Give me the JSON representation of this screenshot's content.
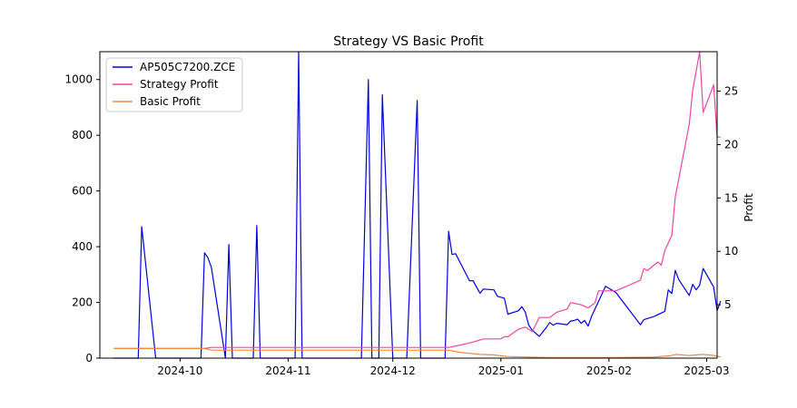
{
  "chart_data": {
    "type": "line",
    "title": "Strategy VS Basic Profit",
    "xlabel": "",
    "ylabel_left": "",
    "ylabel_right": "Profit",
    "x_axis_type": "date",
    "xlim": [
      "2024-09-08",
      "2025-03-04"
    ],
    "ylim_left": [
      0,
      1100
    ],
    "ylim_right": [
      0,
      28.7
    ],
    "x_ticks": [
      "2024-10-01",
      "2024-11-01",
      "2024-12-01",
      "2025-01-01",
      "2025-02-01",
      "2025-03-01"
    ],
    "x_tick_labels": [
      "2024-10",
      "2024-11",
      "2024-12",
      "2025-01",
      "2025-02",
      "2025-03"
    ],
    "y_ticks_left": [
      0,
      200,
      400,
      600,
      800,
      1000
    ],
    "y_tick_labels_left": [
      "0",
      "200",
      "400",
      "600",
      "800",
      "1000"
    ],
    "y_ticks_right": [
      5,
      10,
      15,
      20,
      25
    ],
    "y_tick_labels_right": [
      "5",
      "10",
      "15",
      "20",
      "25"
    ],
    "grid": false,
    "legend_position": "top-left",
    "series": [
      {
        "name": "AP505C7200.ZCE",
        "axis": "left",
        "color": "#0000dd",
        "points": [
          [
            "2024-09-12",
            0
          ],
          [
            "2024-09-19",
            0
          ],
          [
            "2024-09-20",
            472
          ],
          [
            "2024-09-24",
            0
          ],
          [
            "2024-10-07",
            0
          ],
          [
            "2024-10-08",
            378
          ],
          [
            "2024-10-09",
            360
          ],
          [
            "2024-10-10",
            325
          ],
          [
            "2024-10-14",
            0
          ],
          [
            "2024-10-15",
            408
          ],
          [
            "2024-10-16",
            0
          ],
          [
            "2024-10-22",
            0
          ],
          [
            "2024-10-23",
            476
          ],
          [
            "2024-10-24",
            0
          ],
          [
            "2024-11-03",
            0
          ],
          [
            "2024-11-04",
            1100
          ],
          [
            "2024-11-05",
            0
          ],
          [
            "2024-11-22",
            0
          ],
          [
            "2024-11-24",
            1000
          ],
          [
            "2024-11-25",
            0
          ],
          [
            "2024-11-27",
            0
          ],
          [
            "2024-11-28",
            945
          ],
          [
            "2024-12-01",
            0
          ],
          [
            "2024-12-05",
            0
          ],
          [
            "2024-12-08",
            925
          ],
          [
            "2024-12-09",
            0
          ],
          [
            "2024-12-16",
            0
          ],
          [
            "2024-12-17",
            455
          ],
          [
            "2024-12-18",
            372
          ],
          [
            "2024-12-19",
            375
          ],
          [
            "2024-12-23",
            278
          ],
          [
            "2024-12-24",
            278
          ],
          [
            "2024-12-26",
            233
          ],
          [
            "2024-12-27",
            248
          ],
          [
            "2024-12-30",
            245
          ],
          [
            "2024-12-31",
            222
          ],
          [
            "2025-01-02",
            215
          ],
          [
            "2025-01-03",
            158
          ],
          [
            "2025-01-06",
            170
          ],
          [
            "2025-01-07",
            185
          ],
          [
            "2025-01-08",
            165
          ],
          [
            "2025-01-09",
            118
          ],
          [
            "2025-01-10",
            100
          ],
          [
            "2025-01-12",
            78
          ],
          [
            "2025-01-14",
            110
          ],
          [
            "2025-01-15",
            128
          ],
          [
            "2025-01-16",
            118
          ],
          [
            "2025-01-17",
            125
          ],
          [
            "2025-01-20",
            120
          ],
          [
            "2025-01-21",
            133
          ],
          [
            "2025-01-22",
            135
          ],
          [
            "2025-01-23",
            140
          ],
          [
            "2025-01-24",
            125
          ],
          [
            "2025-01-25",
            135
          ],
          [
            "2025-01-26",
            115
          ],
          [
            "2025-01-27",
            150
          ],
          [
            "2025-01-31",
            258
          ],
          [
            "2025-02-03",
            235
          ],
          [
            "2025-02-10",
            120
          ],
          [
            "2025-02-11",
            138
          ],
          [
            "2025-02-14",
            150
          ],
          [
            "2025-02-17",
            168
          ],
          [
            "2025-02-18",
            245
          ],
          [
            "2025-02-19",
            232
          ],
          [
            "2025-02-20",
            315
          ],
          [
            "2025-02-21",
            282
          ],
          [
            "2025-02-24",
            225
          ],
          [
            "2025-02-25",
            265
          ],
          [
            "2025-02-26",
            245
          ],
          [
            "2025-02-27",
            262
          ],
          [
            "2025-02-28",
            322
          ],
          [
            "2025-03-03",
            255
          ],
          [
            "2025-03-04",
            170
          ],
          [
            "2025-03-05",
            205
          ]
        ]
      },
      {
        "name": "Strategy Profit",
        "axis": "right",
        "color": "#ee44aa",
        "points": [
          [
            "2024-09-12",
            0.9
          ],
          [
            "2024-10-08",
            0.9
          ],
          [
            "2024-10-10",
            1.0
          ],
          [
            "2024-12-17",
            1.0
          ],
          [
            "2024-12-20",
            1.2
          ],
          [
            "2024-12-24",
            1.5
          ],
          [
            "2024-12-27",
            1.8
          ],
          [
            "2025-01-01",
            1.8
          ],
          [
            "2025-01-02",
            2.0
          ],
          [
            "2025-01-03",
            2.0
          ],
          [
            "2025-01-06",
            2.7
          ],
          [
            "2025-01-08",
            2.9
          ],
          [
            "2025-01-10",
            2.5
          ],
          [
            "2025-01-12",
            3.8
          ],
          [
            "2025-01-15",
            3.8
          ],
          [
            "2025-01-17",
            4.3
          ],
          [
            "2025-01-20",
            4.6
          ],
          [
            "2025-01-21",
            5.2
          ],
          [
            "2025-01-24",
            5.0
          ],
          [
            "2025-01-26",
            4.7
          ],
          [
            "2025-01-28",
            5.2
          ],
          [
            "2025-01-29",
            6.3
          ],
          [
            "2025-02-03",
            6.3
          ],
          [
            "2025-02-10",
            7.3
          ],
          [
            "2025-02-11",
            8.4
          ],
          [
            "2025-02-12",
            8.2
          ],
          [
            "2025-02-15",
            9.0
          ],
          [
            "2025-02-16",
            8.7
          ],
          [
            "2025-02-17",
            10.1
          ],
          [
            "2025-02-19",
            11.5
          ],
          [
            "2025-02-20",
            15.1
          ],
          [
            "2025-02-24",
            21.9
          ],
          [
            "2025-02-25",
            25.1
          ],
          [
            "2025-02-27",
            28.7
          ],
          [
            "2025-02-28",
            23.0
          ],
          [
            "2025-03-03",
            25.6
          ],
          [
            "2025-03-04",
            20.7
          ],
          [
            "2025-03-05",
            20.7
          ]
        ]
      },
      {
        "name": "Basic Profit",
        "axis": "right",
        "color": "#ee8844",
        "points": [
          [
            "2024-09-12",
            0.9
          ],
          [
            "2024-10-08",
            0.9
          ],
          [
            "2024-10-10",
            0.75
          ],
          [
            "2024-12-17",
            0.75
          ],
          [
            "2024-12-20",
            0.55
          ],
          [
            "2024-12-26",
            0.35
          ],
          [
            "2024-12-30",
            0.3
          ],
          [
            "2025-01-03",
            0.15
          ],
          [
            "2025-01-09",
            0.1
          ],
          [
            "2025-01-15",
            0.05
          ],
          [
            "2025-02-03",
            0.05
          ],
          [
            "2025-02-14",
            0.1
          ],
          [
            "2025-02-19",
            0.25
          ],
          [
            "2025-02-20",
            0.35
          ],
          [
            "2025-02-24",
            0.25
          ],
          [
            "2025-02-28",
            0.35
          ],
          [
            "2025-03-03",
            0.25
          ],
          [
            "2025-03-05",
            0.1
          ]
        ]
      }
    ]
  }
}
